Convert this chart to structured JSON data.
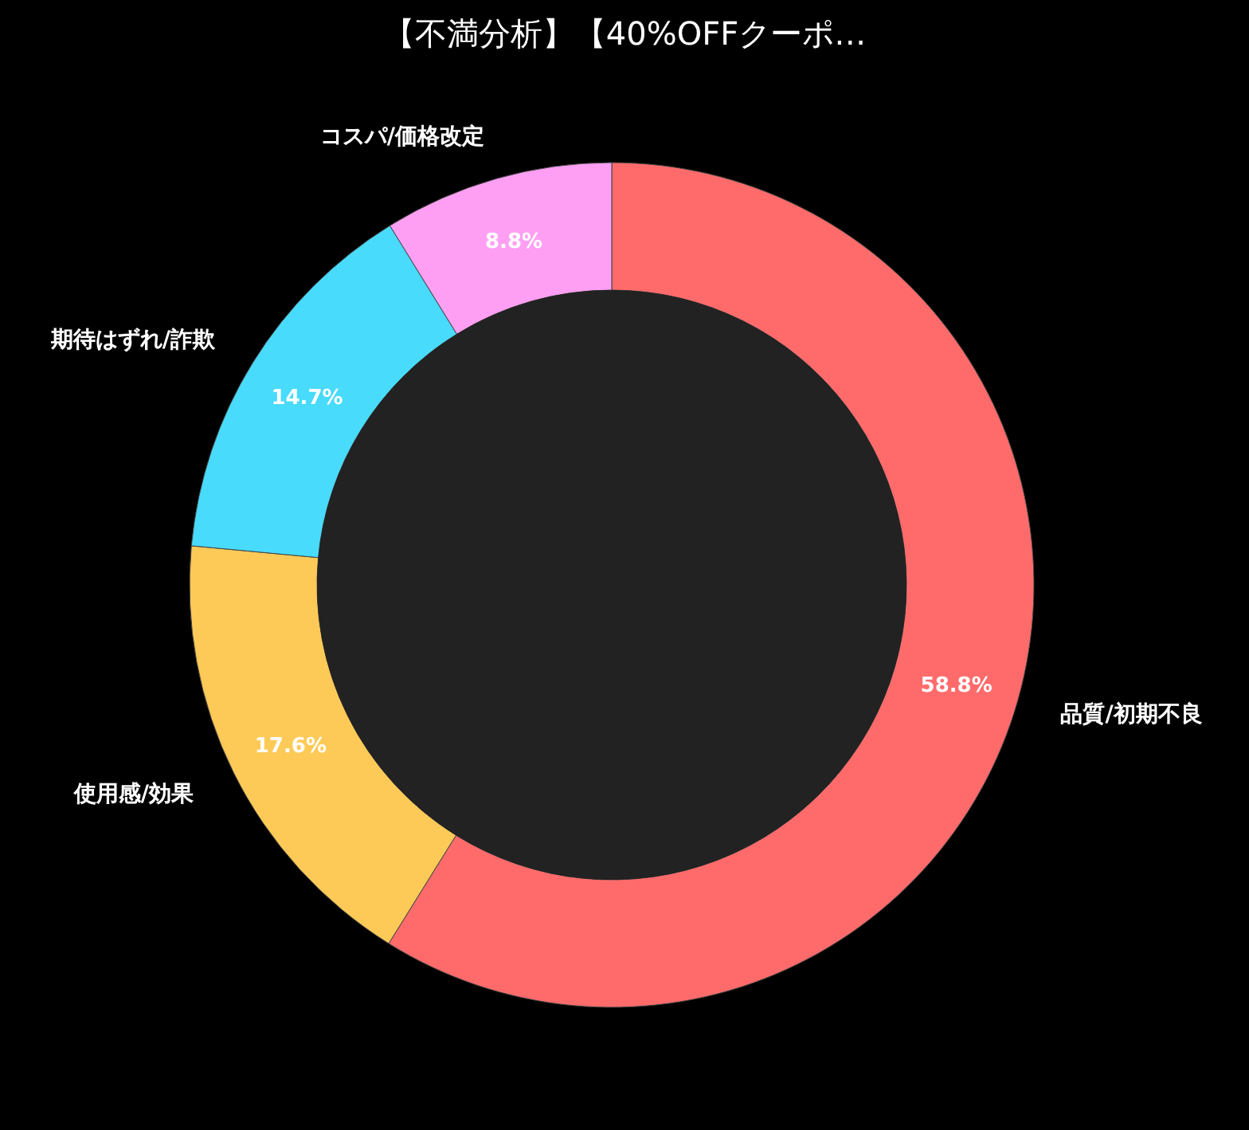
{
  "chart_data": {
    "type": "donut",
    "title": "【不満分析】【40%OFFクーポ…",
    "categories": [
      "品質/初期不良",
      "使用感/効果",
      "期待はずれ/詐欺",
      "コスパ/価格改定"
    ],
    "values": [
      58.8,
      17.6,
      14.7,
      8.8
    ],
    "colors": [
      "#ff6b6b",
      "#feca57",
      "#48dbfb",
      "#ff9ff3"
    ],
    "value_labels": [
      "58.8%",
      "17.6%",
      "14.7%",
      "8.8%"
    ],
    "legend": false
  }
}
